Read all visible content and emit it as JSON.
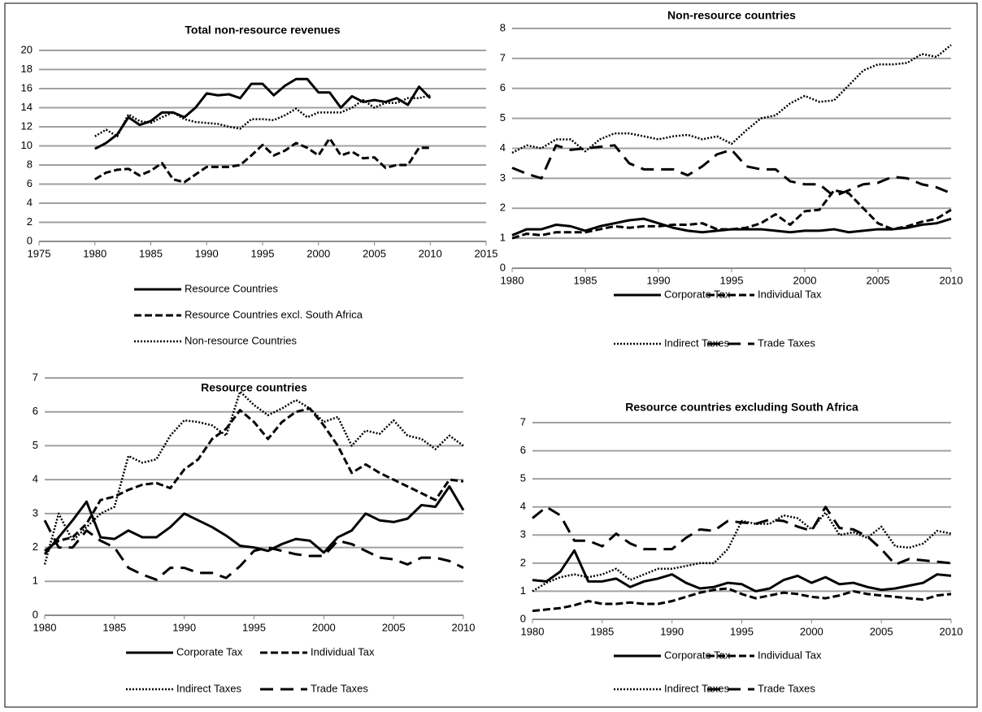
{
  "chart_data": [
    {
      "type": "line",
      "title": "Total non-resource revenues",
      "x": [
        1980,
        1981,
        1982,
        1983,
        1984,
        1985,
        1986,
        1987,
        1988,
        1989,
        1990,
        1991,
        1992,
        1993,
        1994,
        1995,
        1996,
        1997,
        1998,
        1999,
        2000,
        2001,
        2002,
        2003,
        2004,
        2005,
        2006,
        2007,
        2008,
        2009,
        2010
      ],
      "xlim": [
        1975,
        2015
      ],
      "xticks": [
        1975,
        1980,
        1985,
        1990,
        1995,
        2000,
        2005,
        2010,
        2015
      ],
      "ylim": [
        0,
        20
      ],
      "yticks": [
        0,
        2,
        4,
        6,
        8,
        10,
        12,
        14,
        16,
        18,
        20
      ],
      "grid": true,
      "legend": "bottom-stacked",
      "series": [
        {
          "name": "Resource Countries",
          "color": "#000000",
          "line_style": "solid",
          "values": [
            9.7,
            10.3,
            11.2,
            13.0,
            12.2,
            12.6,
            13.5,
            13.5,
            13.0,
            14.0,
            15.5,
            15.3,
            15.4,
            15.0,
            16.5,
            16.5,
            15.3,
            16.3,
            17.0,
            17.0,
            15.6,
            15.6,
            14.0,
            15.2,
            14.6,
            14.8,
            14.6,
            15.0,
            14.3,
            16.2,
            15.0
          ]
        },
        {
          "name": "Resource Countries excl. South Africa",
          "color": "#000000",
          "line_style": "dashed",
          "values": [
            6.5,
            7.2,
            7.5,
            7.6,
            6.9,
            7.4,
            8.2,
            6.5,
            6.2,
            7.0,
            7.8,
            7.8,
            7.8,
            8.0,
            9.0,
            10.1,
            9.0,
            9.5,
            10.3,
            9.8,
            9.0,
            10.8,
            9.0,
            9.4,
            8.7,
            8.8,
            7.7,
            8.0,
            8.0,
            9.8,
            9.8
          ]
        },
        {
          "name": "Non-resource Countries",
          "color": "#000000",
          "line_style": "dotted",
          "values": [
            11.0,
            11.7,
            11.0,
            13.3,
            12.6,
            12.4,
            13.0,
            13.5,
            12.8,
            12.5,
            12.4,
            12.3,
            12.0,
            11.8,
            12.8,
            12.8,
            12.7,
            13.2,
            13.9,
            13.0,
            13.5,
            13.5,
            13.5,
            14.0,
            14.8,
            14.0,
            14.5,
            14.5,
            15.0,
            15.0,
            15.3
          ]
        }
      ]
    },
    {
      "type": "line",
      "title": "Non-resource countries",
      "x": [
        1980,
        1981,
        1982,
        1983,
        1984,
        1985,
        1986,
        1987,
        1988,
        1989,
        1990,
        1991,
        1992,
        1993,
        1994,
        1995,
        1996,
        1997,
        1998,
        1999,
        2000,
        2001,
        2002,
        2003,
        2004,
        2005,
        2006,
        2007,
        2008,
        2009,
        2010
      ],
      "xlim": [
        1980,
        2010
      ],
      "xticks": [
        1980,
        1985,
        1990,
        1995,
        2000,
        2005,
        2010
      ],
      "ylim": [
        0,
        8
      ],
      "yticks": [
        0,
        1,
        2,
        3,
        4,
        5,
        6,
        7,
        8
      ],
      "grid": true,
      "legend": "bottom-grid",
      "series": [
        {
          "name": "Corporate Tax",
          "color": "#000000",
          "line_style": "solid",
          "values": [
            1.1,
            1.3,
            1.3,
            1.45,
            1.4,
            1.25,
            1.4,
            1.5,
            1.6,
            1.65,
            1.5,
            1.35,
            1.25,
            1.2,
            1.25,
            1.3,
            1.3,
            1.3,
            1.25,
            1.2,
            1.25,
            1.25,
            1.3,
            1.2,
            1.25,
            1.3,
            1.3,
            1.35,
            1.45,
            1.5,
            1.65
          ]
        },
        {
          "name": "Individual Tax",
          "color": "#000000",
          "line_style": "dashed",
          "values": [
            1.0,
            1.15,
            1.1,
            1.2,
            1.2,
            1.2,
            1.3,
            1.4,
            1.35,
            1.4,
            1.4,
            1.45,
            1.45,
            1.5,
            1.3,
            1.3,
            1.35,
            1.5,
            1.8,
            1.45,
            1.9,
            1.95,
            2.6,
            2.5,
            2.0,
            1.5,
            1.3,
            1.4,
            1.55,
            1.65,
            1.95
          ]
        },
        {
          "name": "Indirect Taxes",
          "color": "#000000",
          "line_style": "dotted",
          "values": [
            3.85,
            4.1,
            4.0,
            4.3,
            4.3,
            3.9,
            4.3,
            4.5,
            4.5,
            4.4,
            4.3,
            4.4,
            4.45,
            4.3,
            4.4,
            4.15,
            4.6,
            5.0,
            5.1,
            5.5,
            5.75,
            5.55,
            5.6,
            6.1,
            6.6,
            6.8,
            6.8,
            6.85,
            7.15,
            7.05,
            7.45
          ]
        },
        {
          "name": "Trade Taxes",
          "color": "#000000",
          "line_style": "longdash",
          "values": [
            3.35,
            3.15,
            3.0,
            4.1,
            3.95,
            4.0,
            4.05,
            4.1,
            3.5,
            3.3,
            3.3,
            3.3,
            3.1,
            3.4,
            3.8,
            3.95,
            3.4,
            3.3,
            3.3,
            2.9,
            2.8,
            2.8,
            2.4,
            2.6,
            2.8,
            2.85,
            3.05,
            3.0,
            2.8,
            2.7,
            2.5
          ]
        }
      ]
    },
    {
      "type": "line",
      "title": "Resource countries",
      "x": [
        1980,
        1981,
        1982,
        1983,
        1984,
        1985,
        1986,
        1987,
        1988,
        1989,
        1990,
        1991,
        1992,
        1993,
        1994,
        1995,
        1996,
        1997,
        1998,
        1999,
        2000,
        2001,
        2002,
        2003,
        2004,
        2005,
        2006,
        2007,
        2008,
        2009,
        2010
      ],
      "xlim": [
        1980,
        2010
      ],
      "xticks": [
        1980,
        1985,
        1990,
        1995,
        2000,
        2005,
        2010
      ],
      "ylim": [
        0,
        7
      ],
      "yticks": [
        0,
        1,
        2,
        3,
        4,
        5,
        6,
        7
      ],
      "grid": true,
      "legend": "bottom-grid",
      "series": [
        {
          "name": "Corporate Tax",
          "color": "#000000",
          "line_style": "solid",
          "values": [
            1.8,
            2.3,
            2.8,
            3.35,
            2.3,
            2.25,
            2.5,
            2.3,
            2.3,
            2.6,
            3.0,
            2.8,
            2.6,
            2.35,
            2.05,
            2.0,
            1.9,
            2.1,
            2.25,
            2.2,
            1.85,
            2.3,
            2.5,
            3.0,
            2.8,
            2.75,
            2.85,
            3.25,
            3.2,
            3.8,
            3.1
          ]
        },
        {
          "name": "Individual Tax",
          "color": "#000000",
          "line_style": "dashed",
          "values": [
            1.9,
            2.2,
            2.3,
            2.7,
            3.4,
            3.5,
            3.7,
            3.85,
            3.9,
            3.75,
            4.3,
            4.6,
            5.2,
            5.5,
            6.05,
            5.7,
            5.2,
            5.7,
            6.0,
            6.1,
            5.6,
            5.0,
            4.2,
            4.45,
            4.2,
            4.0,
            3.8,
            3.6,
            3.4,
            4.0,
            3.95
          ]
        },
        {
          "name": "Indirect Taxes",
          "color": "#000000",
          "line_style": "dotted",
          "values": [
            1.5,
            3.0,
            2.2,
            2.6,
            3.0,
            3.2,
            4.7,
            4.5,
            4.6,
            5.3,
            5.75,
            5.7,
            5.6,
            5.3,
            6.6,
            6.2,
            5.9,
            6.1,
            6.35,
            6.1,
            5.7,
            5.85,
            5.0,
            5.45,
            5.35,
            5.75,
            5.3,
            5.2,
            4.9,
            5.3,
            5.0
          ]
        },
        {
          "name": "Trade Taxes",
          "color": "#000000",
          "line_style": "longdash",
          "values": [
            2.8,
            2.0,
            2.0,
            2.5,
            2.2,
            2.0,
            1.4,
            1.2,
            1.05,
            1.4,
            1.4,
            1.25,
            1.25,
            1.1,
            1.45,
            1.9,
            2.0,
            1.9,
            1.8,
            1.75,
            1.75,
            2.2,
            2.1,
            1.9,
            1.7,
            1.65,
            1.5,
            1.7,
            1.7,
            1.6,
            1.4
          ]
        }
      ]
    },
    {
      "type": "line",
      "title": "Resource countries excluding South Africa",
      "x": [
        1980,
        1981,
        1982,
        1983,
        1984,
        1985,
        1986,
        1987,
        1988,
        1989,
        1990,
        1991,
        1992,
        1993,
        1994,
        1995,
        1996,
        1997,
        1998,
        1999,
        2000,
        2001,
        2002,
        2003,
        2004,
        2005,
        2006,
        2007,
        2008,
        2009,
        2010
      ],
      "xlim": [
        1980,
        2010
      ],
      "xticks": [
        1980,
        1985,
        1990,
        1995,
        2000,
        2005,
        2010
      ],
      "ylim": [
        0,
        7
      ],
      "yticks": [
        0,
        1,
        2,
        3,
        4,
        5,
        6,
        7
      ],
      "grid": true,
      "legend": "bottom-grid",
      "series": [
        {
          "name": "Corporate Tax",
          "color": "#000000",
          "line_style": "solid",
          "values": [
            1.4,
            1.35,
            1.7,
            2.45,
            1.35,
            1.35,
            1.45,
            1.15,
            1.35,
            1.45,
            1.6,
            1.3,
            1.1,
            1.15,
            1.3,
            1.25,
            1.0,
            1.1,
            1.4,
            1.55,
            1.3,
            1.5,
            1.25,
            1.3,
            1.15,
            1.05,
            1.1,
            1.2,
            1.3,
            1.6,
            1.55
          ]
        },
        {
          "name": "Individual Tax",
          "color": "#000000",
          "line_style": "dashed",
          "values": [
            0.3,
            0.35,
            0.4,
            0.5,
            0.65,
            0.55,
            0.55,
            0.6,
            0.55,
            0.55,
            0.65,
            0.8,
            0.95,
            1.05,
            1.1,
            0.9,
            0.75,
            0.85,
            0.95,
            0.9,
            0.8,
            0.75,
            0.85,
            1.0,
            0.9,
            0.85,
            0.8,
            0.75,
            0.7,
            0.85,
            0.9
          ]
        },
        {
          "name": "Indirect Taxes",
          "color": "#000000",
          "line_style": "dotted",
          "values": [
            1.0,
            1.3,
            1.5,
            1.6,
            1.5,
            1.6,
            1.8,
            1.4,
            1.6,
            1.8,
            1.8,
            1.9,
            2.0,
            2.0,
            2.5,
            3.5,
            3.4,
            3.4,
            3.7,
            3.6,
            3.2,
            3.8,
            3.0,
            3.1,
            2.9,
            3.3,
            2.6,
            2.55,
            2.7,
            3.15,
            3.05
          ]
        },
        {
          "name": "Trade Taxes",
          "color": "#000000",
          "line_style": "longdash",
          "values": [
            3.6,
            4.0,
            3.7,
            2.8,
            2.8,
            2.6,
            3.05,
            2.7,
            2.5,
            2.5,
            2.5,
            2.9,
            3.2,
            3.15,
            3.5,
            3.45,
            3.4,
            3.55,
            3.5,
            3.3,
            3.15,
            4.0,
            3.25,
            3.2,
            2.95,
            2.5,
            1.95,
            2.15,
            2.1,
            2.05,
            2.0
          ]
        }
      ]
    }
  ]
}
